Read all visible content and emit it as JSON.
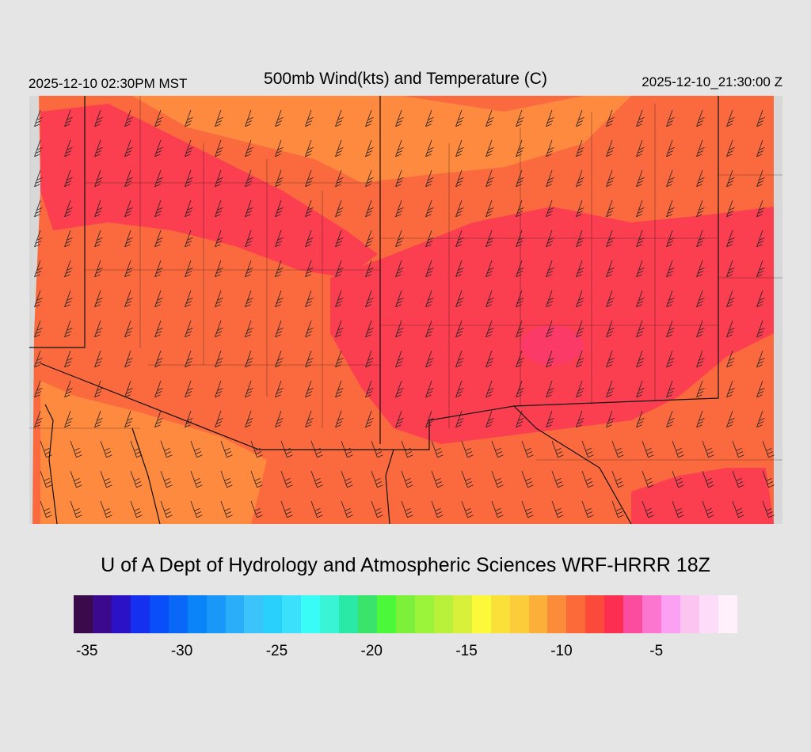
{
  "header": {
    "valid_local": "2025-12-10 02:30PM MST",
    "title": "500mb Wind(kts) and Temperature (C)",
    "valid_utc": "2025-12-10_21:30:00 Z"
  },
  "footer": {
    "credit": "U of A Dept of Hydrology and Atmospheric Sciences WRF-HRRR 18Z"
  },
  "map": {
    "background_color": "#fb6a3e",
    "field_colors": {
      "warm_band": "#fd8a3e",
      "core_cold": "#fb3e50",
      "coldest": "#fb3a68",
      "missing": "#d8d8d8"
    },
    "boundary_color": "#111111",
    "barb_color": "#222222"
  },
  "colorbar": {
    "colors": [
      "#3a0a4a",
      "#3b0a8c",
      "#2c12c6",
      "#1530ee",
      "#0a4efa",
      "#0a68f8",
      "#0a84f8",
      "#1a98fa",
      "#2aaefa",
      "#3ac4fa",
      "#2ad0fc",
      "#3ae0fc",
      "#3afcf6",
      "#3af4d6",
      "#2ae8a6",
      "#3ae46a",
      "#4cf83a",
      "#7cf03a",
      "#9cf43a",
      "#b8f03a",
      "#d8f03a",
      "#fcf83a",
      "#fce03a",
      "#fccc3a",
      "#fcb03a",
      "#fc8c3a",
      "#fc6a3a",
      "#fc4a3a",
      "#fc2e52",
      "#fc4ca0",
      "#fc76d0",
      "#fca0f4",
      "#fcc4f0",
      "#fcdcf8",
      "#fff0fc"
    ],
    "ticks": [
      {
        "label": "-35",
        "pos": 0.02
      },
      {
        "label": "-30",
        "pos": 0.163
      },
      {
        "label": "-25",
        "pos": 0.306
      },
      {
        "label": "-20",
        "pos": 0.449
      },
      {
        "label": "-15",
        "pos": 0.592
      },
      {
        "label": "-10",
        "pos": 0.735
      },
      {
        "label": "-5",
        "pos": 0.878
      }
    ]
  }
}
